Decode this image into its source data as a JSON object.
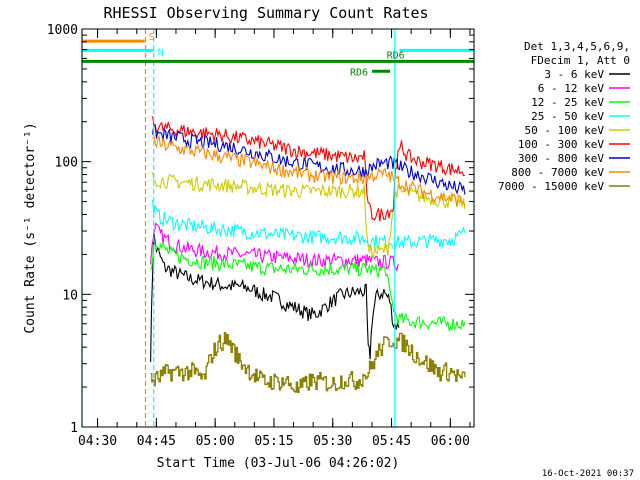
{
  "chart_data": {
    "type": "line",
    "title": "RHESSI Observing Summary Count Rates",
    "xlabel": "Start Time (03-Jul-06 04:26:02)",
    "ylabel": "Count Rate (s⁻¹ detector⁻¹)",
    "yscale": "log",
    "ylim": [
      1,
      1000
    ],
    "xlim_minutes": [
      0,
      100
    ],
    "x_ticks": [
      {
        "label": "04:30",
        "minute": 3.97
      },
      {
        "label": "04:45",
        "minute": 18.97
      },
      {
        "label": "05:00",
        "minute": 33.97
      },
      {
        "label": "05:15",
        "minute": 48.97
      },
      {
        "label": "05:30",
        "minute": 63.97
      },
      {
        "label": "05:45",
        "minute": 78.97
      },
      {
        "label": "06:00",
        "minute": 93.97
      }
    ],
    "y_ticks": [
      {
        "label": "1",
        "value": 1
      },
      {
        "label": "10",
        "value": 10
      },
      {
        "label": "100",
        "value": 100
      },
      {
        "label": "1000",
        "value": 1000
      }
    ],
    "legend": {
      "header": [
        "Det 1,3,4,5,6,9,",
        "FDecim 1, Att 0"
      ],
      "placement": "right"
    },
    "series": [
      {
        "name": "3 - 6 keV",
        "color": "#000000",
        "x": [
          17.5,
          17.9,
          18.3,
          19,
          20,
          21,
          23,
          25,
          28,
          31,
          34,
          37,
          40,
          43,
          46,
          49,
          52,
          55,
          57,
          58,
          60,
          63,
          66,
          69,
          72,
          72.5,
          73,
          73.5,
          74,
          75,
          77,
          78.5,
          79.5,
          80.5,
          81.2
        ],
        "y": [
          3.5,
          12,
          28,
          22,
          19,
          16,
          15,
          14,
          13,
          12.5,
          12,
          11.5,
          11.5,
          11,
          10,
          9.5,
          8.5,
          7.8,
          7.3,
          7,
          7.2,
          8.5,
          9.8,
          10.3,
          10.5,
          10.5,
          3.8,
          3.5,
          6.5,
          9.5,
          10.5,
          9,
          6,
          5.8,
          6
        ]
      },
      {
        "name": "6 - 12 keV",
        "color": "#ff00ff",
        "x": [
          17.5,
          18.5,
          20,
          23,
          27,
          31,
          35,
          40,
          45,
          50,
          55,
          60,
          65,
          70,
          72.5,
          73,
          75,
          78,
          81
        ],
        "y": [
          18,
          33,
          28,
          24,
          22,
          21,
          20.5,
          20,
          19.5,
          19,
          18.5,
          18,
          18,
          18,
          18,
          18,
          17.5,
          17.5,
          17
        ]
      },
      {
        "name": "12 - 25 keV",
        "color": "#00ff00",
        "x": [
          17.5,
          18.5,
          20,
          23,
          27,
          31,
          35,
          40,
          45,
          50,
          55,
          60,
          65,
          70,
          72.5,
          73,
          75,
          77.5,
          78.5,
          79.5,
          80,
          81,
          83,
          86,
          89,
          92,
          95,
          98
        ],
        "y": [
          15,
          25,
          23,
          20,
          18.5,
          17.5,
          17,
          16.5,
          16,
          15.5,
          15.5,
          15.5,
          15.5,
          15.5,
          15.5,
          15.5,
          15,
          15.5,
          10,
          8,
          7,
          6.5,
          6.3,
          6.2,
          6.1,
          6,
          6,
          6
        ]
      },
      {
        "name": "25 - 50 keV",
        "color": "#00ffff",
        "x": [
          18,
          19,
          20,
          23,
          27,
          31,
          35,
          40,
          45,
          50,
          55,
          60,
          65,
          70,
          72.5,
          73,
          75,
          78.5,
          79.2,
          80,
          82,
          86,
          90,
          94,
          97,
          98
        ],
        "y": [
          48,
          40,
          38,
          35,
          33,
          32,
          31,
          30,
          29,
          28,
          27.5,
          27,
          27,
          26.5,
          26,
          26,
          25,
          25,
          25,
          24.5,
          24.5,
          25,
          25.5,
          26,
          28,
          31
        ]
      },
      {
        "name": "50 - 100 keV",
        "color": "#cccc00",
        "x": [
          18,
          20,
          25,
          30,
          35,
          40,
          45,
          50,
          55,
          60,
          65,
          70,
          72,
          73,
          74,
          76,
          78,
          80,
          83,
          86,
          90,
          94,
          98
        ],
        "y": [
          75,
          72,
          70,
          68,
          67,
          65,
          63,
          61,
          60,
          60,
          60,
          60,
          60,
          21,
          21,
          21,
          22,
          60,
          58,
          55,
          52,
          50,
          48
        ]
      },
      {
        "name": "100 - 300 keV",
        "color": "#ff0000",
        "x": [
          18,
          20,
          25,
          30,
          35,
          40,
          45,
          50,
          55,
          60,
          65,
          70,
          72,
          73,
          74,
          76,
          78,
          79.5,
          80,
          81.5,
          83,
          86,
          90,
          94,
          98
        ],
        "y": [
          195,
          180,
          172,
          165,
          160,
          150,
          140,
          130,
          120,
          115,
          110,
          105,
          110,
          45,
          40,
          40,
          42,
          45,
          95,
          130,
          110,
          100,
          95,
          88,
          85
        ]
      },
      {
        "name": "300 - 800 keV",
        "color": "#0000cc",
        "x": [
          18,
          20,
          25,
          30,
          35,
          40,
          45,
          50,
          55,
          60,
          65,
          70,
          72,
          73,
          75,
          78,
          80,
          83,
          86,
          90,
          94,
          98
        ],
        "y": [
          170,
          160,
          150,
          140,
          135,
          125,
          115,
          105,
          97,
          92,
          88,
          85,
          85,
          87,
          95,
          98,
          95,
          85,
          80,
          72,
          65,
          60
        ]
      },
      {
        "name": "800 - 7000 keV",
        "color": "#ff8800",
        "x": [
          18,
          20,
          25,
          30,
          35,
          40,
          45,
          50,
          55,
          60,
          65,
          70,
          72,
          73,
          75,
          78,
          80,
          83,
          86,
          90,
          94,
          98
        ],
        "y": [
          145,
          135,
          125,
          118,
          110,
          103,
          95,
          88,
          82,
          78,
          76,
          75,
          75,
          76,
          80,
          80,
          72,
          66,
          60,
          56,
          53,
          50
        ]
      },
      {
        "name": "7000 - 15000 keV",
        "color": "#8b8000",
        "x": [
          17.5,
          19,
          22,
          25,
          28,
          31,
          33,
          35,
          37,
          40,
          43,
          46,
          49,
          52,
          55,
          58,
          61,
          64,
          67,
          70,
          73,
          76,
          79,
          82,
          85,
          88,
          91,
          94,
          97,
          98
        ],
        "y": [
          2.2,
          2.3,
          2.6,
          2.6,
          2.6,
          2.3,
          3.5,
          4.3,
          4.6,
          3.2,
          2.6,
          2.2,
          2.2,
          2.2,
          1.9,
          2.2,
          2.2,
          2.1,
          2.3,
          2.2,
          2.6,
          3.9,
          4.6,
          4.3,
          3.5,
          3.0,
          2.6,
          2.6,
          2.3,
          2.2
        ]
      }
    ],
    "flag_lines": [
      {
        "label": "S",
        "color": "#ff8800",
        "x_start": 0,
        "x_end": 16,
        "y": 810
      },
      {
        "label": "N",
        "color": "#00ffff",
        "x_start": 0,
        "x_end": 18.3,
        "y": 690
      },
      {
        "label": "",
        "color": "#00ffff",
        "x_start": 81,
        "x_end": 100,
        "y": 690
      },
      {
        "label": "RD6",
        "color": "#008800",
        "x_start": 0,
        "x_end": 100,
        "y": 570
      },
      {
        "label": "RD6",
        "color": "#008800",
        "x_start": 74,
        "x_end": 78.6,
        "y": 480
      }
    ],
    "vertical_lines": [
      {
        "color": "#00ffff",
        "x": 0,
        "style": "solid"
      },
      {
        "color": "#ff8800",
        "x": 16.2,
        "style": "dashed"
      },
      {
        "color": "#00ffff",
        "x": 18.3,
        "style": "dashed"
      },
      {
        "color": "#00ffff",
        "x": 79.8,
        "style": "solid"
      },
      {
        "color": "#00ffff",
        "x": 100,
        "style": "dashed"
      }
    ],
    "timestamp": "16-Oct-2021 00:37"
  }
}
